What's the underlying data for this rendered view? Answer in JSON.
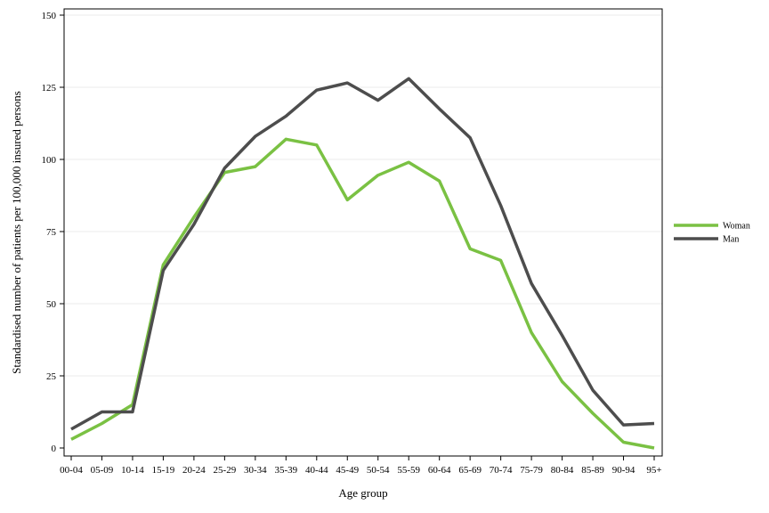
{
  "chart_data": {
    "type": "line",
    "title": "",
    "xlabel": "Age group",
    "ylabel": "Standardised number of patients per 100,000 insured persons",
    "categories": [
      "00-04",
      "05-09",
      "10-14",
      "15-19",
      "20-24",
      "25-29",
      "30-34",
      "35-39",
      "40-44",
      "45-49",
      "50-54",
      "55-59",
      "60-64",
      "65-69",
      "70-74",
      "75-79",
      "80-84",
      "85-89",
      "90-94",
      "95+"
    ],
    "ylim": [
      0,
      150
    ],
    "yticks": [
      0,
      25,
      50,
      75,
      100,
      125,
      150
    ],
    "grid": true,
    "legend_position": "right",
    "series": [
      {
        "name": "Woman",
        "color": "#7ac143",
        "values": [
          3,
          8.5,
          15,
          63.5,
          80,
          95.5,
          97.5,
          107,
          105,
          86,
          94.5,
          99,
          92.5,
          69,
          65,
          40,
          23,
          12,
          2,
          0
        ]
      },
      {
        "name": "Man",
        "color": "#4d4d4d",
        "values": [
          6.5,
          12.5,
          12.5,
          61.5,
          77.5,
          97,
          108,
          115,
          124,
          126.5,
          120.5,
          128,
          117.5,
          107.5,
          84,
          57,
          39,
          20,
          8,
          8.5
        ]
      }
    ]
  }
}
